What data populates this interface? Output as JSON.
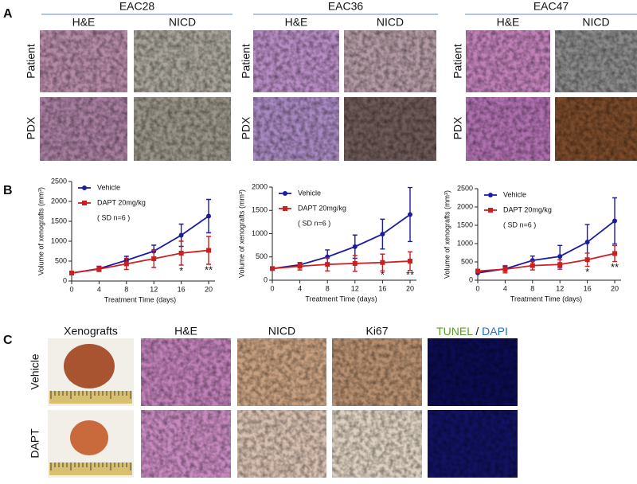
{
  "panel_labels": [
    "A",
    "B",
    "C"
  ],
  "panel_a": {
    "groups": [
      {
        "title": "EAC28",
        "columns": [
          "H&E",
          "NICD"
        ],
        "rows": [
          "Patient",
          "PDX"
        ]
      },
      {
        "title": "EAC36",
        "columns": [
          "H&E",
          "NICD"
        ],
        "rows": [
          "Patient",
          "PDX"
        ]
      },
      {
        "title": "EAC47",
        "columns": [
          "H&E",
          "NICD"
        ],
        "rows": [
          "Patient",
          "PDX"
        ]
      }
    ]
  },
  "panel_c": {
    "columns": [
      "Xenografts",
      "H&E",
      "NICD",
      "Ki67"
    ],
    "tunel": "TUNEL",
    "slash": "/",
    "dapi": "DAPI",
    "rows": [
      "Vehicle",
      "DAPT"
    ]
  },
  "chart_data": [
    {
      "type": "line",
      "xlabel": "Treatment Time (days)",
      "ylabel": "Volume of xenografts (mm³)",
      "x": [
        0,
        4,
        8,
        12,
        16,
        20
      ],
      "xlim": [
        0,
        20
      ],
      "xticks": [
        0,
        4,
        8,
        12,
        16,
        20
      ],
      "ylim": [
        0,
        2500
      ],
      "yticks": [
        0,
        500,
        1000,
        1500,
        2000,
        2500
      ],
      "series": [
        {
          "name": "Vehicle",
          "color": "#1c1ca0",
          "marker": "circle",
          "values": [
            200,
            310,
            520,
            750,
            1150,
            1630
          ],
          "errors": [
            0,
            60,
            100,
            150,
            280,
            420
          ]
        },
        {
          "name": "DAPT 20mg/kg",
          "color": "#cc2020",
          "marker": "square",
          "values": [
            200,
            300,
            430,
            560,
            700,
            770
          ],
          "errors": [
            0,
            60,
            140,
            220,
            300,
            350
          ]
        }
      ],
      "note": "( SD  n=6 )",
      "annotations": [
        {
          "x": 16,
          "text": "*"
        },
        {
          "x": 20,
          "text": "**"
        }
      ]
    },
    {
      "type": "line",
      "xlabel": "Treatment Time (days)",
      "ylabel": "Volume of xenografts (mm³)",
      "x": [
        0,
        4,
        8,
        12,
        16,
        20
      ],
      "xlim": [
        0,
        20
      ],
      "xticks": [
        0,
        4,
        8,
        12,
        16,
        20
      ],
      "ylim": [
        0,
        2000
      ],
      "yticks": [
        0,
        500,
        1000,
        1500,
        2000
      ],
      "series": [
        {
          "name": "Vehicle",
          "color": "#1c1ca0",
          "marker": "circle",
          "values": [
            250,
            330,
            500,
            720,
            990,
            1410
          ],
          "errors": [
            0,
            50,
            150,
            250,
            320,
            580
          ]
        },
        {
          "name": "DAPT 20mg/kg",
          "color": "#cc2020",
          "marker": "square",
          "values": [
            250,
            300,
            340,
            360,
            380,
            410
          ],
          "errors": [
            0,
            80,
            140,
            170,
            180,
            200
          ]
        }
      ],
      "note": "( SD  n=6 )",
      "annotations": [
        {
          "x": 16,
          "text": "*"
        },
        {
          "x": 20,
          "text": "**"
        }
      ]
    },
    {
      "type": "line",
      "xlabel": "Treatment Time (days)",
      "ylabel": "Volume of xenografts (mm³)",
      "x": [
        0,
        4,
        8,
        12,
        16,
        20
      ],
      "xlim": [
        0,
        20
      ],
      "xticks": [
        0,
        4,
        8,
        12,
        16,
        20
      ],
      "ylim": [
        0,
        2500
      ],
      "yticks": [
        0,
        500,
        1000,
        1500,
        2000,
        2500
      ],
      "series": [
        {
          "name": "Vehicle",
          "color": "#1c1ca0",
          "marker": "circle",
          "values": [
            200,
            310,
            540,
            650,
            1040,
            1620
          ],
          "errors": [
            0,
            70,
            120,
            300,
            480,
            630
          ]
        },
        {
          "name": "DAPT 20mg/kg",
          "color": "#cc2020",
          "marker": "square",
          "values": [
            250,
            300,
            400,
            430,
            560,
            730
          ],
          "errors": [
            0,
            100,
            120,
            130,
            180,
            220
          ]
        }
      ],
      "note": "( SD  n=6 )",
      "annotations": [
        {
          "x": 16,
          "text": "*"
        },
        {
          "x": 20,
          "text": "**"
        }
      ]
    }
  ]
}
